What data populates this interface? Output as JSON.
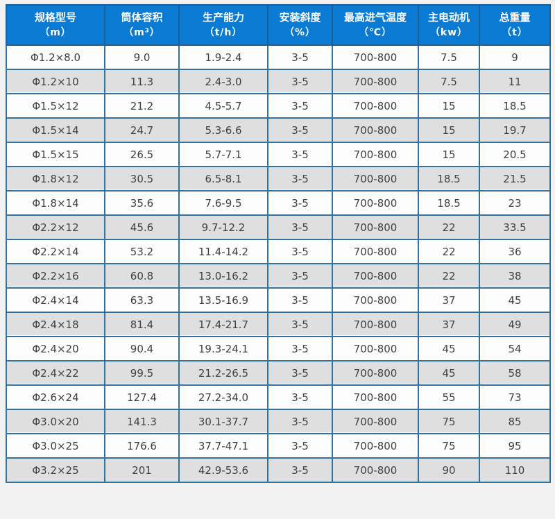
{
  "colors": {
    "header_bg": "#0a7ad2",
    "header_text": "#ffffff",
    "inner_border": "#33729f",
    "outer_border": "#1c5e93",
    "row_odd_bg": "#fdfdfd",
    "row_even_bg": "#dfdfdf",
    "cell_text": "#404040",
    "page_bg": "#f2f2f2"
  },
  "chart_data": {
    "type": "table",
    "title": "",
    "columns": [
      {
        "label": "规格型号",
        "unit": "（m）"
      },
      {
        "label": "筒体容积",
        "unit": "（m³）"
      },
      {
        "label": "生产能力",
        "unit": "（t/h）"
      },
      {
        "label": "安装斜度",
        "unit": "（%）"
      },
      {
        "label": "最高进气温度",
        "unit": "（℃）"
      },
      {
        "label": "主电动机",
        "unit": "（kw）"
      },
      {
        "label": "总重量",
        "unit": "（t）"
      }
    ],
    "rows": [
      [
        "Φ1.2×8.0",
        "9.0",
        "1.9-2.4",
        "3-5",
        "700-800",
        "7.5",
        "9"
      ],
      [
        "Φ1.2×10",
        "11.3",
        "2.4-3.0",
        "3-5",
        "700-800",
        "7.5",
        "11"
      ],
      [
        "Φ1.5×12",
        "21.2",
        "4.5-5.7",
        "3-5",
        "700-800",
        "15",
        "18.5"
      ],
      [
        "Φ1.5×14",
        "24.7",
        "5.3-6.6",
        "3-5",
        "700-800",
        "15",
        "19.7"
      ],
      [
        "Φ1.5×15",
        "26.5",
        "5.7-7.1",
        "3-5",
        "700-800",
        "15",
        "20.5"
      ],
      [
        "Φ1.8×12",
        "30.5",
        "6.5-8.1",
        "3-5",
        "700-800",
        "18.5",
        "21.5"
      ],
      [
        "Φ1.8×14",
        "35.6",
        "7.6-9.5",
        "3-5",
        "700-800",
        "18.5",
        "23"
      ],
      [
        "Φ2.2×12",
        "45.6",
        "9.7-12.2",
        "3-5",
        "700-800",
        "22",
        "33.5"
      ],
      [
        "Φ2.2×14",
        "53.2",
        "11.4-14.2",
        "3-5",
        "700-800",
        "22",
        "36"
      ],
      [
        "Φ2.2×16",
        "60.8",
        "13.0-16.2",
        "3-5",
        "700-800",
        "22",
        "38"
      ],
      [
        "Φ2.4×14",
        "63.3",
        "13.5-16.9",
        "3-5",
        "700-800",
        "37",
        "45"
      ],
      [
        "Φ2.4×18",
        "81.4",
        "17.4-21.7",
        "3-5",
        "700-800",
        "37",
        "49"
      ],
      [
        "Φ2.4×20",
        "90.4",
        "19.3-24.1",
        "3-5",
        "700-800",
        "45",
        "54"
      ],
      [
        "Φ2.4×22",
        "99.5",
        "21.2-26.5",
        "3-5",
        "700-800",
        "45",
        "58"
      ],
      [
        "Φ2.6×24",
        "127.4",
        "27.2-34.0",
        "3-5",
        "700-800",
        "55",
        "73"
      ],
      [
        "Φ3.0×20",
        "141.3",
        "30.1-37.7",
        "3-5",
        "700-800",
        "75",
        "85"
      ],
      [
        "Φ3.0×25",
        "176.6",
        "37.7-47.1",
        "3-5",
        "700-800",
        "75",
        "95"
      ],
      [
        "Φ3.2×25",
        "201",
        "42.9-53.6",
        "3-5",
        "700-800",
        "90",
        "110"
      ]
    ]
  }
}
